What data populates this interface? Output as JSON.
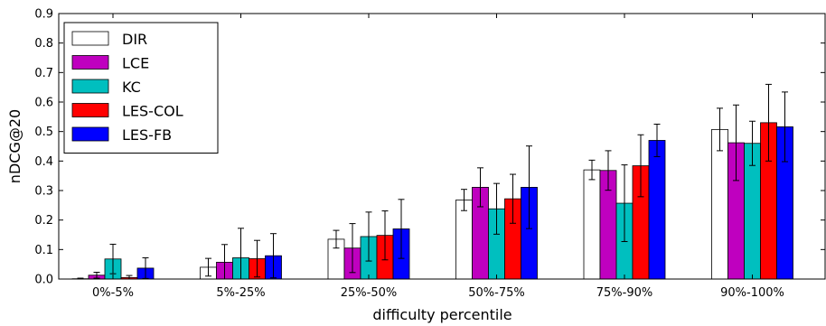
{
  "chart_data": {
    "type": "bar",
    "xlabel": "difficulty percentile",
    "ylabel": "nDCG@20",
    "ylim": [
      0.0,
      0.9
    ],
    "yticks": [
      "0.0",
      "0.1",
      "0.2",
      "0.3",
      "0.4",
      "0.5",
      "0.6",
      "0.7",
      "0.8",
      "0.9"
    ],
    "grid": false,
    "legend_position": "top-left",
    "categories": [
      "0%-5%",
      "5%-25%",
      "25%-50%",
      "50%-75%",
      "75%-90%",
      "90%-100%"
    ],
    "series": [
      {
        "name": "DIR",
        "color": "#ffffff",
        "values": [
          0.001,
          0.04,
          0.135,
          0.268,
          0.37,
          0.507
        ],
        "errors": [
          0.002,
          0.03,
          0.03,
          0.036,
          0.033,
          0.072
        ]
      },
      {
        "name": "LCE",
        "color": "#bf00bf",
        "values": [
          0.013,
          0.057,
          0.105,
          0.311,
          0.368,
          0.462
        ],
        "errors": [
          0.01,
          0.06,
          0.083,
          0.066,
          0.067,
          0.128
        ]
      },
      {
        "name": "KC",
        "color": "#00bfbf",
        "values": [
          0.068,
          0.072,
          0.144,
          0.238,
          0.257,
          0.46
        ],
        "errors": [
          0.05,
          0.1,
          0.083,
          0.086,
          0.13,
          0.075
        ]
      },
      {
        "name": "LES-COL",
        "color": "#ff0000",
        "values": [
          0.005,
          0.069,
          0.148,
          0.272,
          0.384,
          0.53
        ],
        "errors": [
          0.007,
          0.062,
          0.083,
          0.083,
          0.105,
          0.13
        ]
      },
      {
        "name": "LES-FB",
        "color": "#0000ff",
        "values": [
          0.037,
          0.079,
          0.17,
          0.311,
          0.47,
          0.516
        ],
        "errors": [
          0.035,
          0.075,
          0.1,
          0.14,
          0.055,
          0.118
        ]
      }
    ]
  }
}
